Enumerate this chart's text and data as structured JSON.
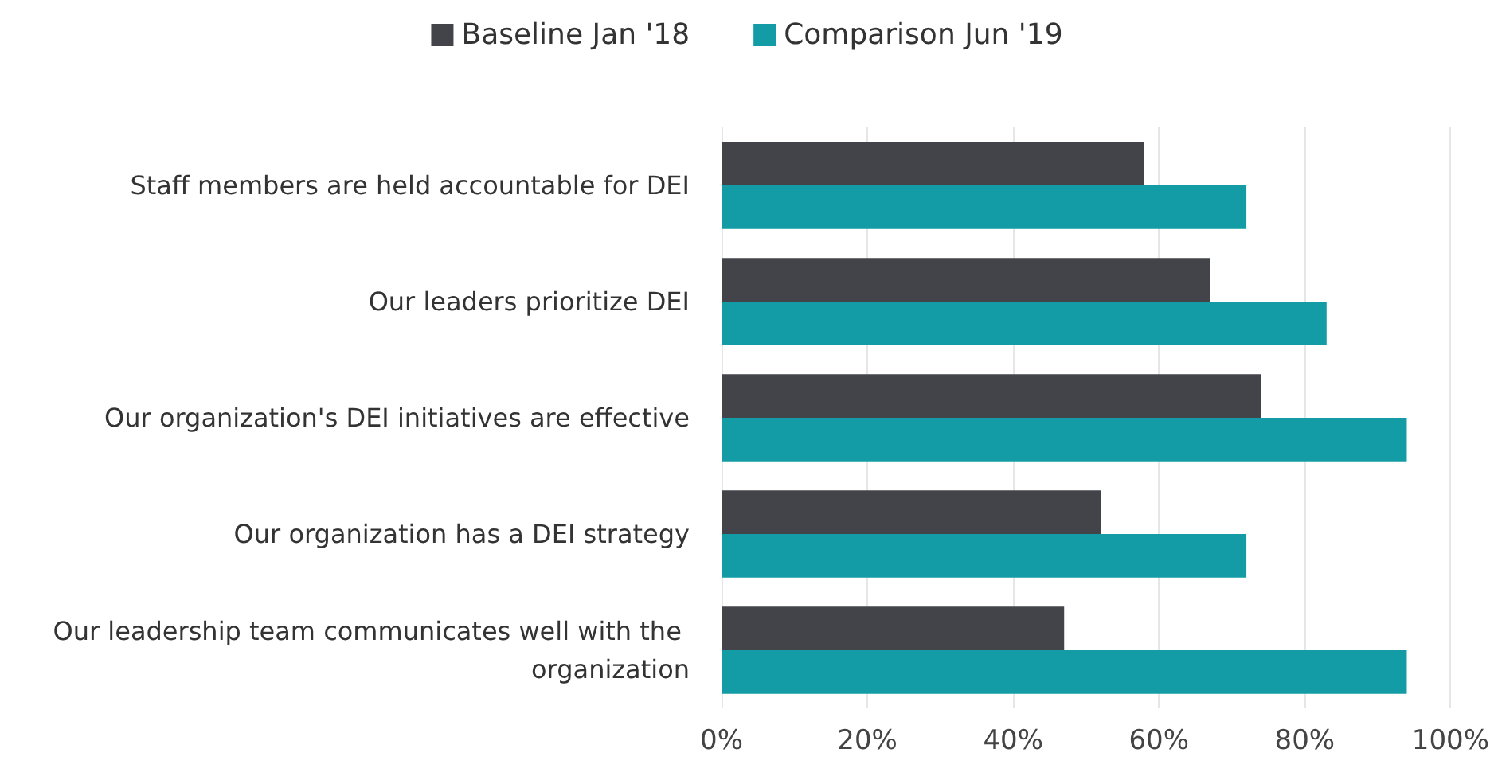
{
  "chart_data": {
    "type": "bar",
    "orientation": "horizontal",
    "categories": [
      "Staff members are held accountable for DEI",
      "Our leaders prioritize DEI",
      "Our organization's DEI initiatives are effective",
      "Our organization has a DEI strategy",
      "Our leadership team communicates well with the organization"
    ],
    "series": [
      {
        "name": "Baseline Jan '18",
        "color": "#434449",
        "values": [
          58,
          67,
          74,
          52,
          47
        ]
      },
      {
        "name": "Comparison Jun '19",
        "color": "#139ca6",
        "values": [
          72,
          83,
          94,
          72,
          94
        ]
      }
    ],
    "xlim": [
      0,
      100
    ],
    "xticks": [
      {
        "value": 0,
        "label": "0%"
      },
      {
        "value": 20,
        "label": "20%"
      },
      {
        "value": 40,
        "label": "40%"
      },
      {
        "value": 60,
        "label": "60%"
      },
      {
        "value": 80,
        "label": "80%"
      },
      {
        "value": 100,
        "label": "100%"
      }
    ],
    "grid": "x",
    "legend": "top"
  }
}
